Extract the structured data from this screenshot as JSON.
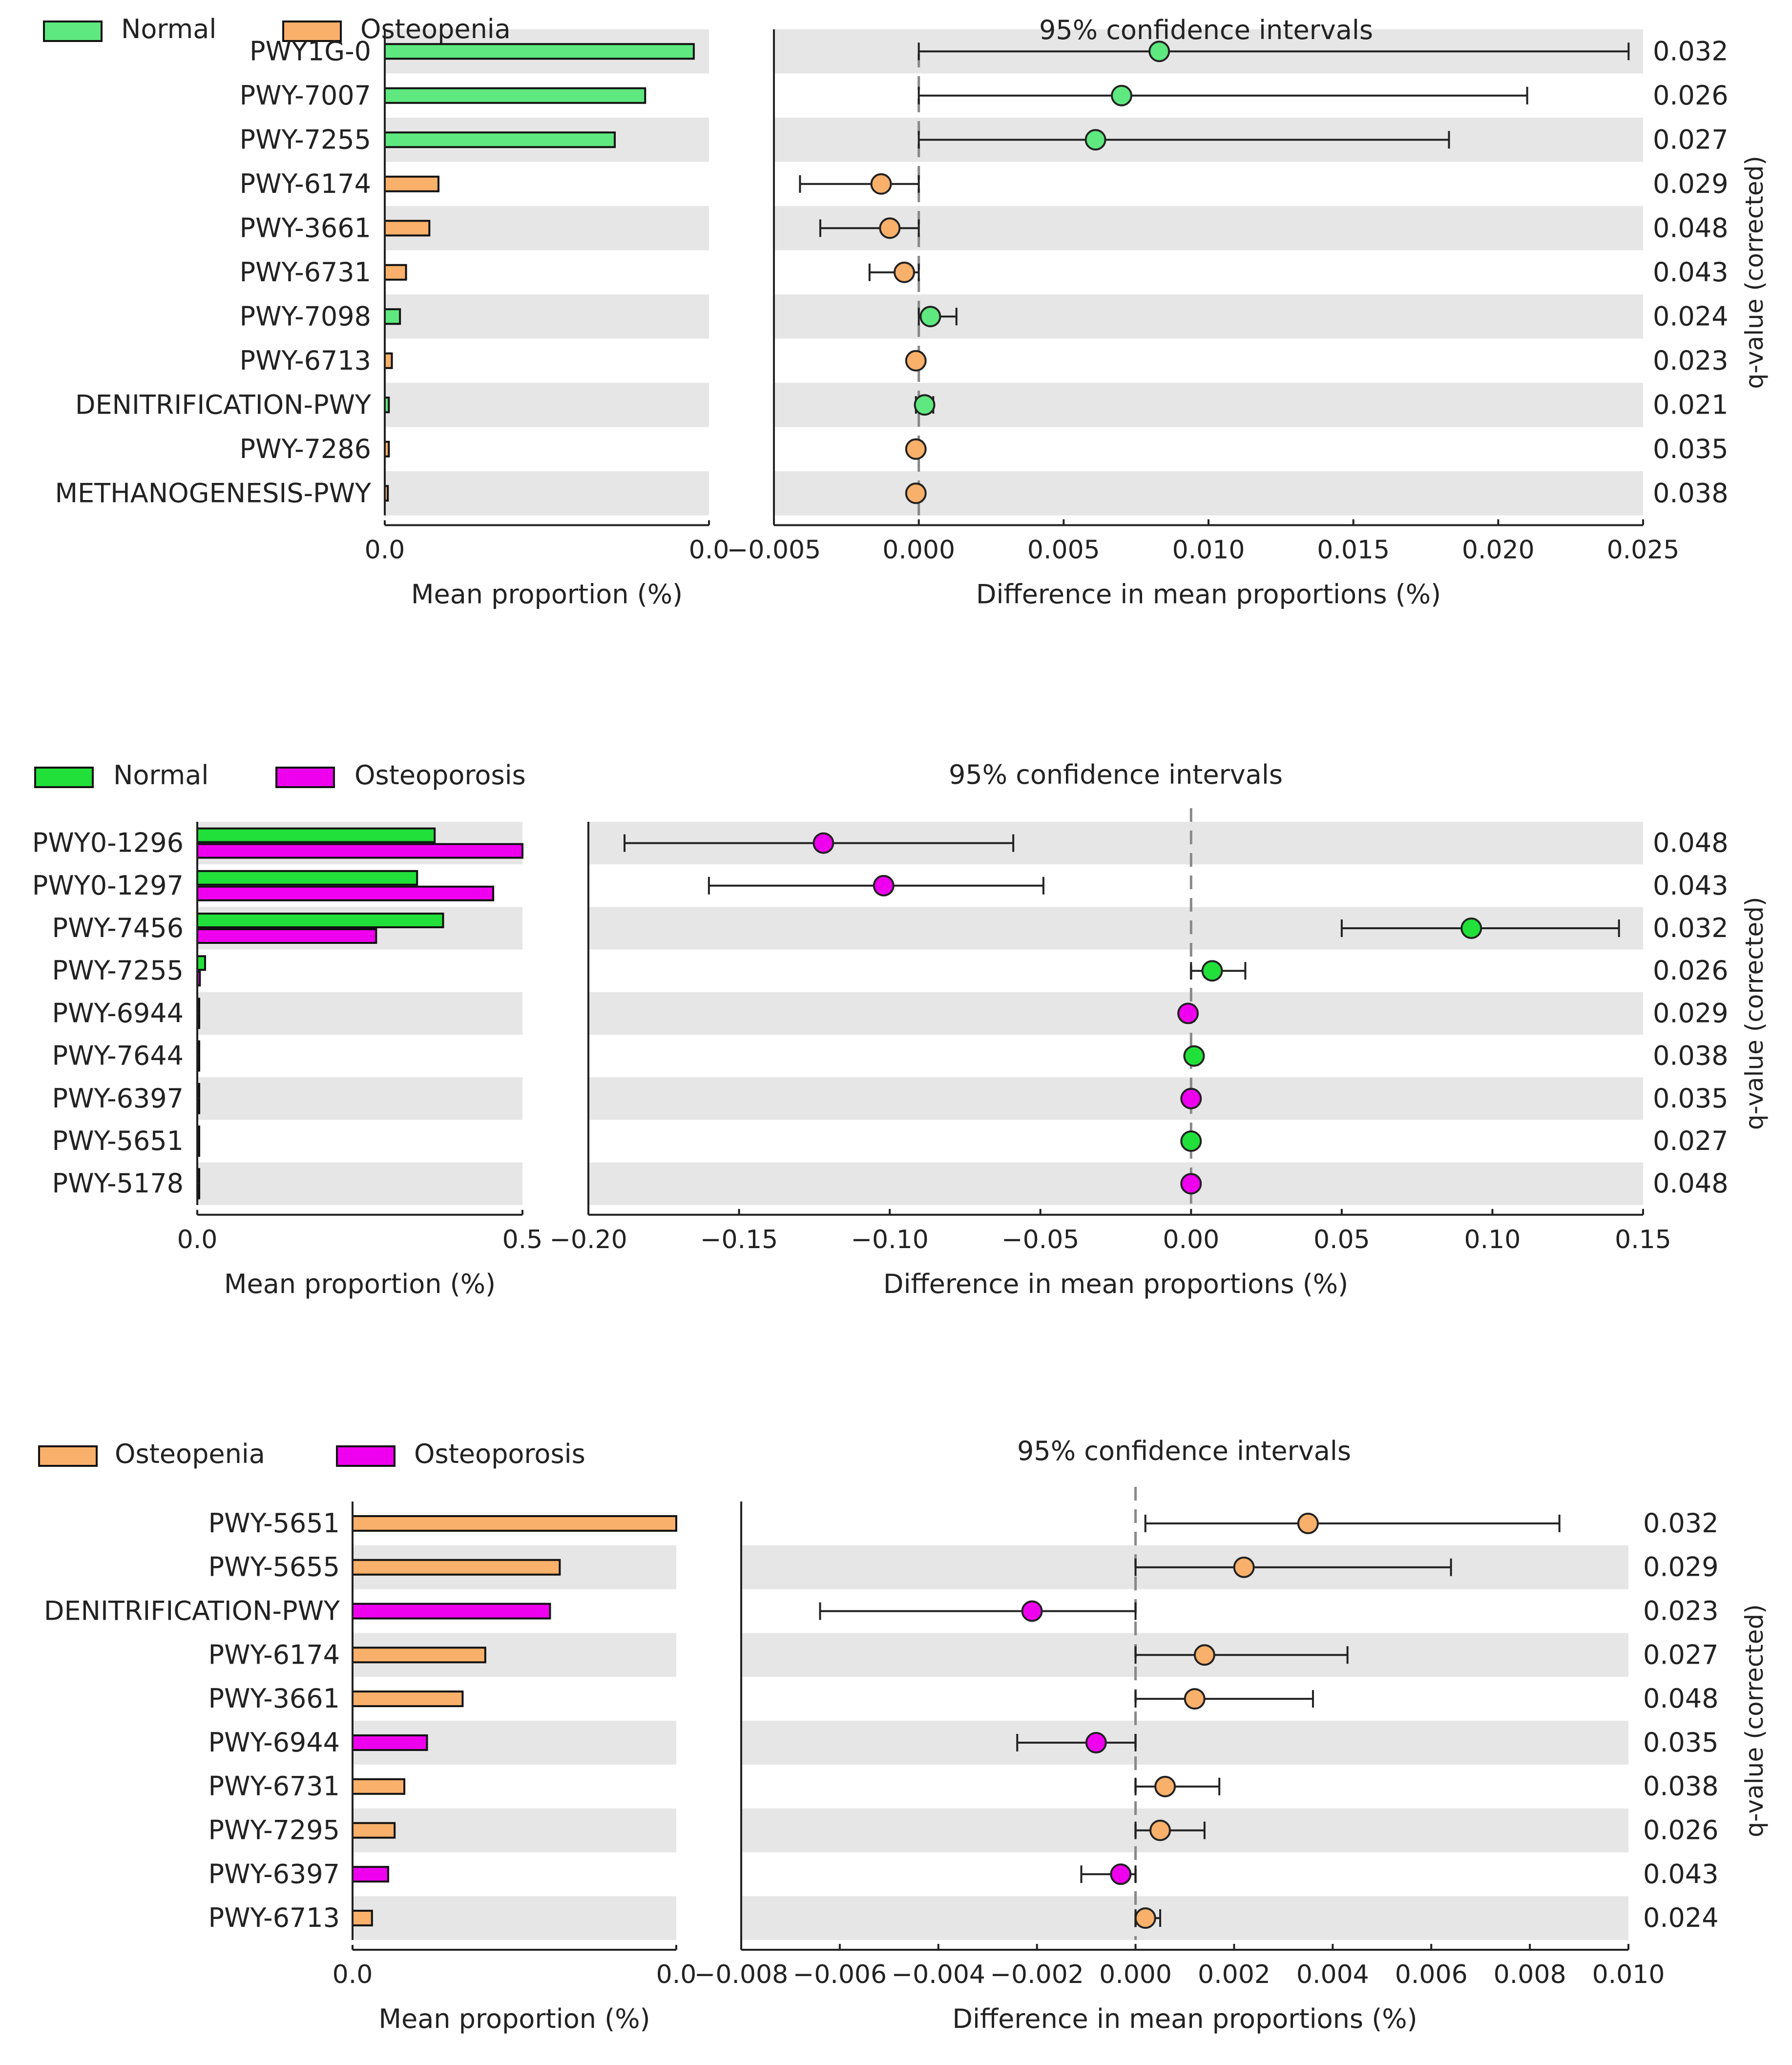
{
  "colors": {
    "normal_panel1": "#5ee87f",
    "normal_panel2": "#22e03a",
    "osteopenia": "#f8b06a",
    "osteoporosis": "#ee00ee",
    "stripe": "#e6e6e6",
    "axis": "#222222"
  },
  "chart_data": [
    {
      "type": "bar",
      "legend": [
        "Normal",
        "Osteopenia"
      ],
      "ci_title": "95% confidence intervals",
      "left_xlabel": "Mean proportion (%)",
      "right_xlabel": "Difference in mean proportions (%)",
      "qlabel": "q-value (corrected)",
      "left_ticks": [
        "0.0",
        "0.0"
      ],
      "left_xlim": [
        0,
        0.032
      ],
      "right_ticks": [
        "−0.005",
        "0.000",
        "0.005",
        "0.010",
        "0.015",
        "0.020",
        "0.025"
      ],
      "right_xlim": [
        -0.005,
        0.025
      ],
      "categories": [
        "PWY1G-0",
        "PWY-7007",
        "PWY-7255",
        "PWY-6174",
        "PWY-3661",
        "PWY-6731",
        "PWY-7098",
        "PWY-6713",
        "DENITRIFICATION-PWY",
        "PWY-7286",
        "METHANOGENESIS-PWY"
      ],
      "mean_proportion": [
        0.0305,
        0.0257,
        0.0227,
        0.0053,
        0.0044,
        0.0021,
        0.0015,
        0.0007,
        0.0004,
        0.0004,
        0.0003
      ],
      "difference": [
        0.0083,
        0.007,
        0.0061,
        -0.0013,
        -0.001,
        -0.0005,
        0.0004,
        -0.0001,
        0.0002,
        -0.0001,
        -0.0001
      ],
      "ci_low": [
        0.0,
        0.0,
        0.0,
        -0.0041,
        -0.0034,
        -0.0017,
        0.0,
        -0.0002,
        -0.0001,
        -0.0002,
        -0.0002
      ],
      "ci_high": [
        0.0245,
        0.021,
        0.0183,
        0.0,
        0.0,
        0.0,
        0.0013,
        0.0001,
        0.0005,
        0.0001,
        0.0001
      ],
      "group": [
        "Normal",
        "Normal",
        "Normal",
        "Osteopenia",
        "Osteopenia",
        "Osteopenia",
        "Normal",
        "Osteopenia",
        "Normal",
        "Osteopenia",
        "Osteopenia"
      ],
      "q_values": [
        "0.032",
        "0.026",
        "0.027",
        "0.029",
        "0.048",
        "0.043",
        "0.024",
        "0.023",
        "0.021",
        "0.035",
        "0.038"
      ]
    },
    {
      "type": "bar",
      "legend": [
        "Normal",
        "Osteoporosis"
      ],
      "ci_title": "95% confidence intervals",
      "left_xlabel": "Mean proportion (%)",
      "right_xlabel": "Difference in mean proportions (%)",
      "qlabel": "q-value (corrected)",
      "left_ticks": [
        "0.0",
        "0.5"
      ],
      "left_xlim": [
        0,
        0.5
      ],
      "right_ticks": [
        "−0.20",
        "−0.15",
        "−0.10",
        "−0.05",
        "0.00",
        "0.05",
        "0.10",
        "0.15"
      ],
      "right_xlim": [
        -0.2,
        0.15
      ],
      "categories": [
        "PWY0-1296",
        "PWY0-1297",
        "PWY-7456",
        "PWY-7255",
        "PWY-6944",
        "PWY-7644",
        "PWY-6397",
        "PWY-5651",
        "PWY-5178"
      ],
      "mean_normal": [
        0.365,
        0.338,
        0.378,
        0.012,
        0.003,
        0.003,
        0.003,
        0.003,
        0.003
      ],
      "mean_other": [
        0.5,
        0.455,
        0.275,
        0.004,
        0.003,
        0.002,
        0.003,
        0.002,
        0.003
      ],
      "difference": [
        -0.122,
        -0.102,
        0.093,
        0.007,
        -0.001,
        0.001,
        0.0,
        0.0,
        0.0
      ],
      "ci_low": [
        -0.188,
        -0.16,
        0.05,
        0.0,
        -0.002,
        0.0,
        -0.001,
        -0.001,
        -0.001
      ],
      "ci_high": [
        -0.059,
        -0.049,
        0.142,
        0.018,
        0.001,
        0.002,
        0.001,
        0.001,
        0.001
      ],
      "group": [
        "Osteoporosis",
        "Osteoporosis",
        "Normal",
        "Normal",
        "Osteoporosis",
        "Normal",
        "Osteoporosis",
        "Normal",
        "Osteoporosis"
      ],
      "q_values": [
        "0.048",
        "0.043",
        "0.032",
        "0.026",
        "0.029",
        "0.038",
        "0.035",
        "0.027",
        "0.048"
      ]
    },
    {
      "type": "bar",
      "legend": [
        "Osteopenia",
        "Osteoporosis"
      ],
      "ci_title": "95% confidence intervals",
      "left_xlabel": "Mean proportion (%)",
      "right_xlabel": "Difference in mean proportions (%)",
      "qlabel": "q-value (corrected)",
      "left_ticks": [
        "0.0",
        "0.0"
      ],
      "left_xlim": [
        0,
        0.01
      ],
      "right_ticks": [
        "−0.008",
        "−0.006",
        "−0.004",
        "−0.002",
        "0.000",
        "0.002",
        "0.004",
        "0.006",
        "0.008",
        "0.010"
      ],
      "right_xlim": [
        -0.008,
        0.01
      ],
      "categories": [
        "PWY-5651",
        "PWY-5655",
        "DENITRIFICATION-PWY",
        "PWY-6174",
        "PWY-3661",
        "PWY-6944",
        "PWY-6731",
        "PWY-7295",
        "PWY-6397",
        "PWY-6713"
      ],
      "mean_proportion": [
        0.01,
        0.0064,
        0.0061,
        0.0041,
        0.0034,
        0.0023,
        0.0016,
        0.0013,
        0.0011,
        0.0006
      ],
      "difference": [
        0.0035,
        0.0022,
        -0.0021,
        0.0014,
        0.0012,
        -0.0008,
        0.0006,
        0.0005,
        -0.0003,
        0.0002
      ],
      "ci_low": [
        0.0002,
        0.0,
        -0.0064,
        0.0,
        0.0,
        -0.0024,
        0.0,
        0.0,
        -0.0011,
        0.0
      ],
      "ci_high": [
        0.0086,
        0.0064,
        0.0,
        0.0043,
        0.0036,
        0.0,
        0.0017,
        0.0014,
        0.0,
        0.0005
      ],
      "group": [
        "Osteopenia",
        "Osteopenia",
        "Osteoporosis",
        "Osteopenia",
        "Osteopenia",
        "Osteoporosis",
        "Osteopenia",
        "Osteopenia",
        "Osteoporosis",
        "Osteopenia"
      ],
      "q_values": [
        "0.032",
        "0.029",
        "0.023",
        "0.027",
        "0.048",
        "0.035",
        "0.038",
        "0.026",
        "0.043",
        "0.024"
      ]
    }
  ]
}
